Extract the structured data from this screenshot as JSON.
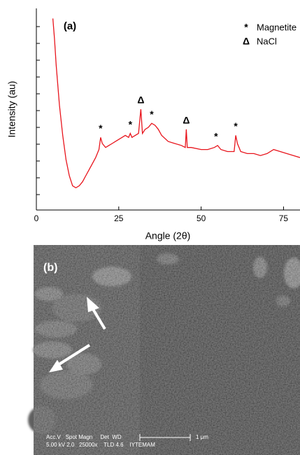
{
  "chart_data": {
    "type": "line",
    "panel_label": "(a)",
    "xlabel": "Angle (2θ)",
    "ylabel": "Intensity (au)",
    "x": [
      5,
      5.5,
      6,
      7,
      8,
      9,
      10,
      11,
      12,
      13,
      14,
      15,
      16,
      17,
      18,
      19,
      19.5,
      20,
      21,
      22,
      23,
      24,
      25,
      26,
      27,
      28,
      28.5,
      29,
      30,
      31,
      31.7,
      32.2,
      33,
      34,
      35,
      36,
      37,
      38,
      40,
      42,
      44,
      45.2,
      45.5,
      45.8,
      47,
      50,
      52,
      54,
      55,
      56,
      58,
      60,
      60.5,
      61,
      62,
      64,
      66,
      68,
      70,
      72,
      74,
      76,
      78,
      80
    ],
    "values": [
      95,
      85,
      72,
      52,
      37,
      25,
      17,
      12,
      11,
      12,
      14,
      17,
      20,
      23,
      26,
      30,
      36,
      33,
      31,
      32,
      33,
      34,
      35,
      36,
      37,
      36,
      38,
      36,
      37,
      38,
      50,
      38,
      40,
      41,
      43,
      42,
      40,
      37,
      34,
      33,
      32,
      31,
      40,
      31,
      31,
      30,
      30,
      31,
      32,
      30,
      29,
      29,
      37,
      33,
      29,
      28,
      28,
      27,
      28,
      30,
      29,
      28,
      27,
      26
    ],
    "color": "#e8141c",
    "xlim": [
      0,
      80
    ],
    "xticks": [
      0,
      25,
      50,
      75
    ],
    "ylim": [
      0,
      100
    ],
    "peaks": [
      {
        "x": 19.5,
        "y": 36,
        "label": "*"
      },
      {
        "x": 28.5,
        "y": 38,
        "label": "*"
      },
      {
        "x": 31.7,
        "y": 50,
        "label": "Δ"
      },
      {
        "x": 35,
        "y": 43,
        "label": "*"
      },
      {
        "x": 45.5,
        "y": 40,
        "label": "Δ"
      },
      {
        "x": 54.5,
        "y": 32,
        "label": "*"
      },
      {
        "x": 60.5,
        "y": 37,
        "label": "*"
      }
    ],
    "legend": [
      {
        "symbol": "*",
        "label": "Magnetite"
      },
      {
        "symbol": "Δ",
        "label": "NaCl"
      }
    ]
  },
  "image": {
    "panel_label": "(b)",
    "info_header": "Acc.V   Spot Magn     Det  WD",
    "info_values": "5.00 kV 2.0   25000x    TLD 4.6    IYTEMAM",
    "scale_bar": "1 μm"
  }
}
